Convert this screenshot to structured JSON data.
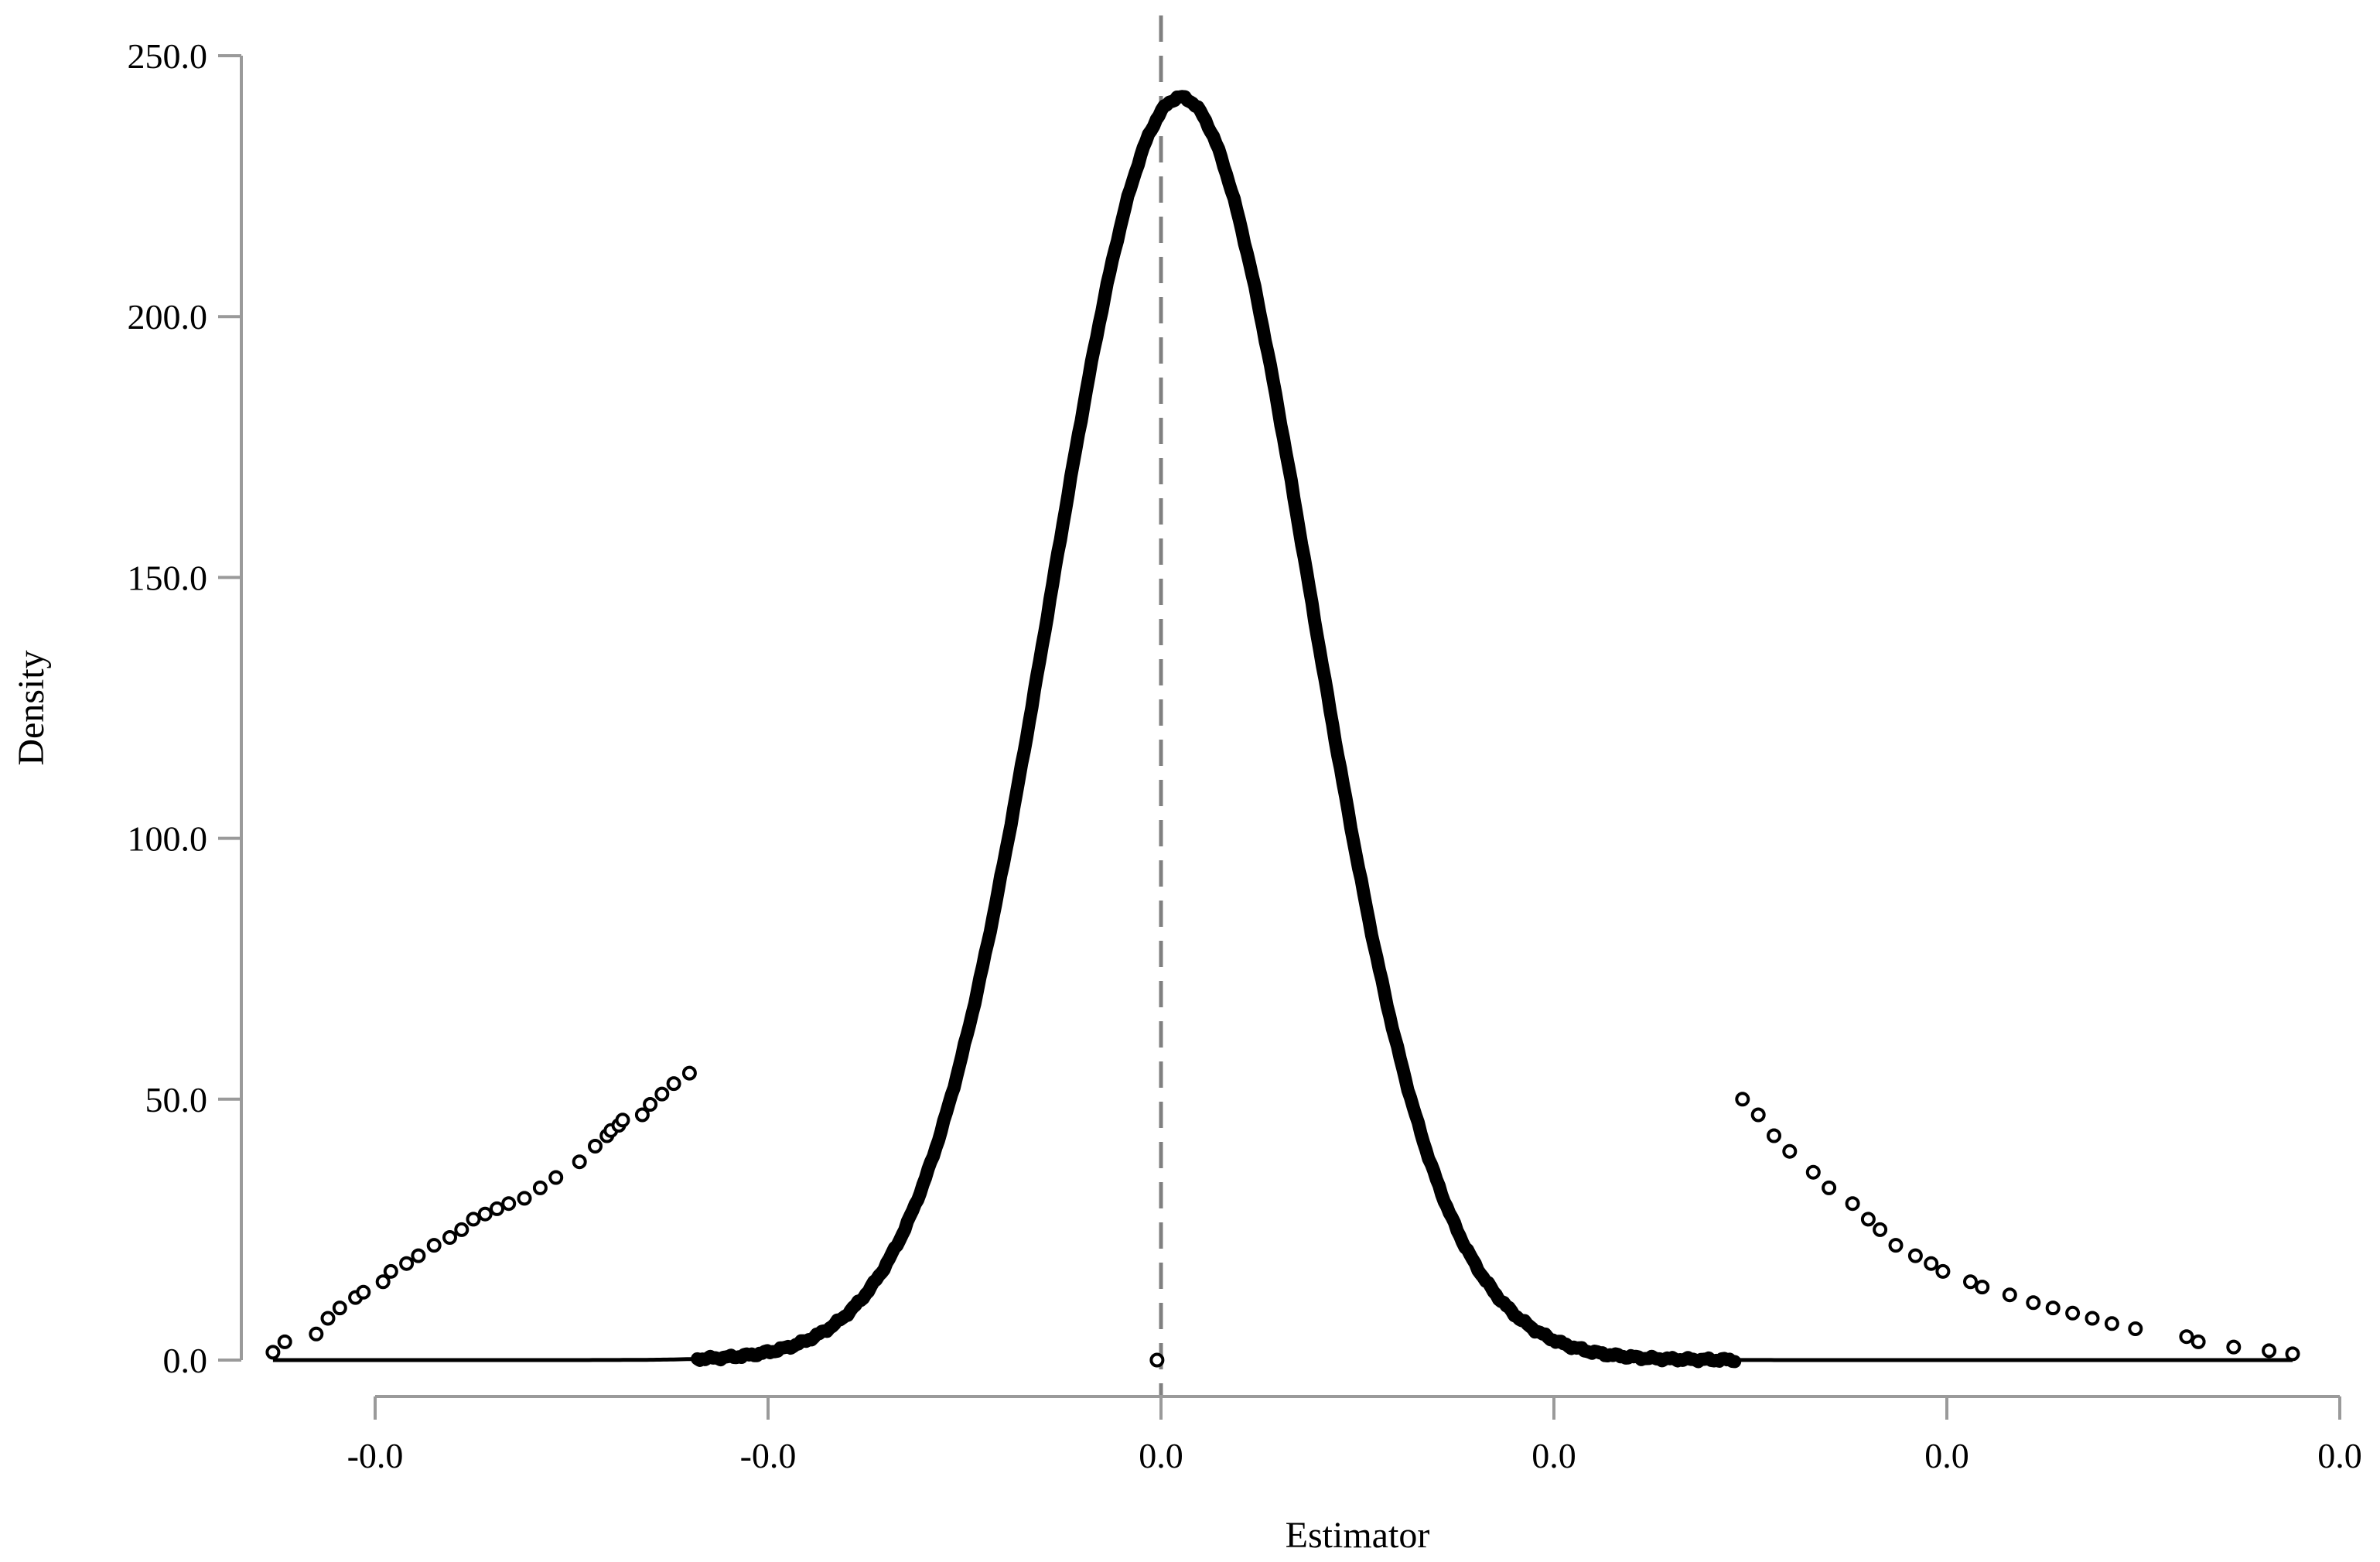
{
  "chart_data": {
    "type": "scatter",
    "title": "",
    "xlabel": "Estimator",
    "ylabel": "Density",
    "x_tick_labels": [
      "-0.0",
      "-0.0",
      "0.0",
      "0.0",
      "0.0",
      "0.0"
    ],
    "y_tick_labels": [
      "0.0",
      "50.0",
      "100.0",
      "150.0",
      "200.0",
      "250.0"
    ],
    "x_ticks": [
      -0.01,
      -0.005,
      0.0,
      0.005,
      0.01,
      0.015
    ],
    "y_ticks": [
      0,
      50,
      100,
      150,
      200,
      250
    ],
    "xlim": [
      -0.01,
      0.015
    ],
    "ylim": [
      0,
      250
    ],
    "reference_line_x": 0.0,
    "grid": false,
    "legend": "none",
    "fitted_curve": {
      "mean": 0.00025,
      "sd": 0.00165,
      "peak": 242
    },
    "tail_points": {
      "x": [
        -0.0113,
        -0.01115,
        -0.01075,
        -0.0106,
        -0.01045,
        -0.01025,
        -0.01015,
        -0.0099,
        -0.0098,
        -0.0096,
        -0.00945,
        -0.00925,
        -0.00905,
        -0.0089,
        -0.00875,
        -0.0086,
        -0.00845,
        -0.0083,
        -0.0081,
        -0.0079,
        -0.0077,
        -0.0074,
        -0.0072,
        -0.00705,
        -0.007,
        -0.0069,
        -0.00685,
        -0.0066,
        -0.0065,
        -0.00635,
        -0.0062,
        -0.006,
        -5e-05,
        0.0074,
        0.0076,
        0.0078,
        0.008,
        0.0083,
        0.0085,
        0.0088,
        0.009,
        0.00915,
        0.00935,
        0.0096,
        0.0098,
        0.00995,
        0.0103,
        0.01045,
        0.0108,
        0.0111,
        0.01135,
        0.0116,
        0.01185,
        0.0121,
        0.0124,
        0.01305,
        0.0132,
        0.01365,
        0.0141,
        0.0144
      ],
      "y": [
        1.5,
        3.5,
        5,
        8,
        10,
        12,
        13,
        15,
        17,
        18.5,
        20,
        22,
        23.5,
        25,
        27,
        28,
        29,
        30,
        31,
        33,
        35,
        38,
        41,
        43,
        44,
        45,
        46,
        47,
        49,
        51,
        53,
        55,
        0,
        50,
        47,
        43,
        40,
        36,
        33,
        30,
        27,
        25,
        22,
        20,
        18.5,
        17,
        15,
        14,
        12.5,
        11,
        10,
        9,
        8,
        7,
        6,
        4.5,
        3.5,
        2.5,
        1.8,
        1.2
      ]
    }
  }
}
